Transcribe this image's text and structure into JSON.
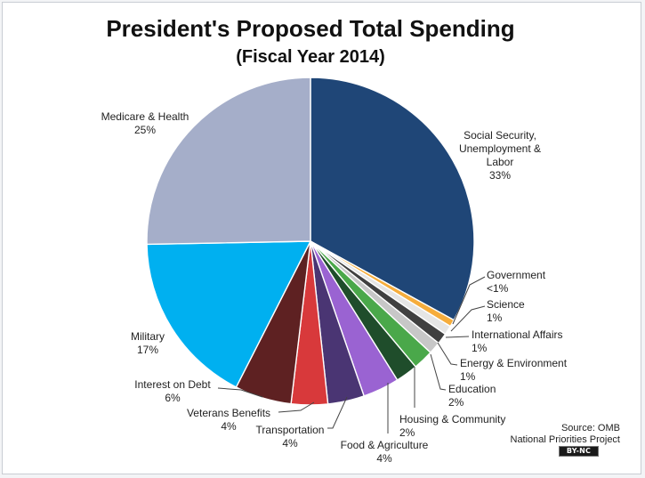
{
  "chart_data": {
    "type": "pie",
    "title": "President's Proposed Total Spending",
    "subtitle": "(Fiscal Year 2014)",
    "slices": [
      {
        "label": [
          "Social Security,",
          "Unemployment &",
          "Labor",
          "33%"
        ],
        "value": 33,
        "color": "#1f4677"
      },
      {
        "label": [
          "Government",
          "<1%"
        ],
        "value": 0.7,
        "color": "#f6ad3c"
      },
      {
        "label": [
          "Science",
          "1%"
        ],
        "value": 0.9,
        "color": "#e5e5e5"
      },
      {
        "label": [
          "International Affairs",
          "1%"
        ],
        "value": 1.1,
        "color": "#404040"
      },
      {
        "label": [
          "Energy & Environment",
          "1%"
        ],
        "value": 1.2,
        "color": "#c7c7c7"
      },
      {
        "label": [
          "Education",
          "2%"
        ],
        "value": 2.0,
        "color": "#4aa84a"
      },
      {
        "label": [
          "Housing & Community",
          "2%"
        ],
        "value": 2.2,
        "color": "#1f4d2b"
      },
      {
        "label": [
          "Food & Agriculture",
          "4%"
        ],
        "value": 3.6,
        "color": "#9a63d2"
      },
      {
        "label": [
          "Transportation",
          "4%"
        ],
        "value": 3.6,
        "color": "#4a3573"
      },
      {
        "label": [
          "Veterans Benefits",
          "4%"
        ],
        "value": 3.6,
        "color": "#d8393b"
      },
      {
        "label": [
          "Interest on Debt",
          "6%"
        ],
        "value": 5.6,
        "color": "#5e2122"
      },
      {
        "label": [
          "Military",
          "17%"
        ],
        "value": 17.2,
        "color": "#00b0f0"
      },
      {
        "label": [
          "Medicare & Health",
          "25%"
        ],
        "value": 25.3,
        "color": "#a5aec9"
      }
    ]
  },
  "source": [
    "Source: OMB",
    "National Priorities Project"
  ],
  "license_badge": "BY-NC"
}
